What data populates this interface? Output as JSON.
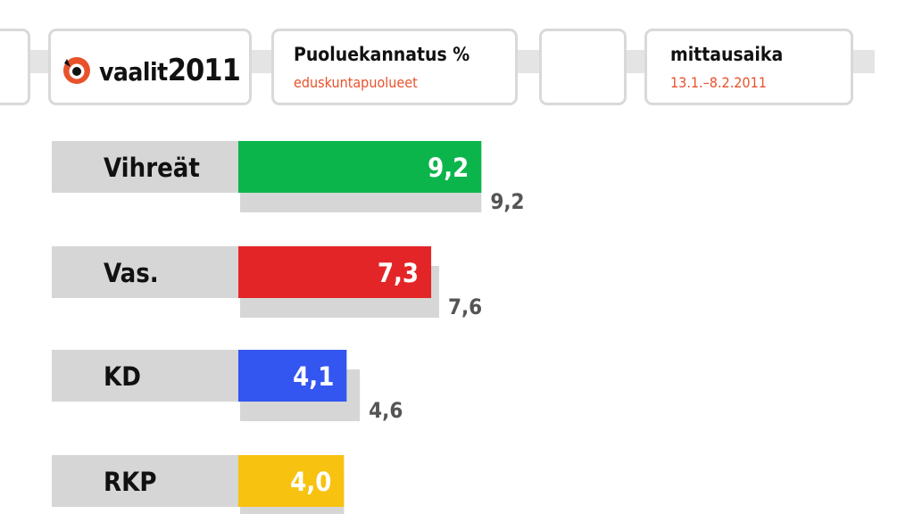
{
  "header": {
    "logo_word": "vaalit",
    "logo_year": "2011",
    "title": "Puoluekannatus %",
    "subtitle": "eduskuntapuolueet",
    "time_label": "mittausaika",
    "time_range": "13.1.–8.2.2011"
  },
  "colors": {
    "logo_orange": "#e8522b",
    "shadow_gray": "#d6d6d6",
    "label_gray": "#d6d6d6",
    "value_gray_text": "#555555"
  },
  "chart_data": {
    "type": "bar",
    "orientation": "horizontal",
    "categories": [
      "Vihreät",
      "Vas.",
      "KD",
      "RKP"
    ],
    "series": [
      {
        "values": [
          9.2,
          7.3,
          4.1,
          4.0
        ],
        "colors": [
          "#0cb54b",
          "#e42528",
          "#3355f0",
          "#f7c210"
        ]
      },
      {
        "values": [
          9.2,
          7.6,
          4.6,
          4.0
        ],
        "color": "#d6d6d6"
      }
    ],
    "value_labels": [
      "9,2",
      "7,3",
      "4,1",
      "4,0"
    ],
    "secondary_labels": [
      "9,2",
      "7,6",
      "4,6",
      ""
    ],
    "title": "Puoluekannatus %",
    "subtitle": "eduskuntapuolueet"
  }
}
